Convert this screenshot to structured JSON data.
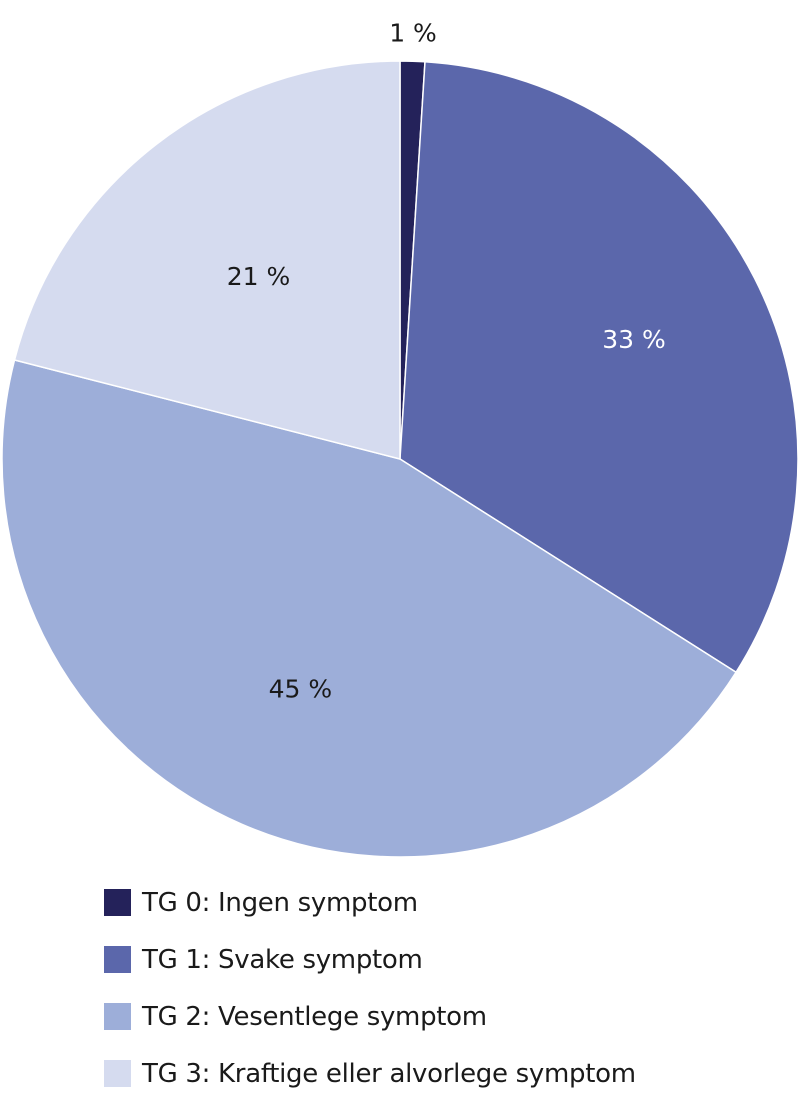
{
  "chart_data": {
    "type": "pie",
    "title": "",
    "start": "top",
    "direction": "clockwise",
    "slices": [
      {
        "name": "TG 0: Ingen symptom",
        "value": 1,
        "label": "1 %",
        "color": "#24225a",
        "label_color": "#1a1a1a"
      },
      {
        "name": "TG 1: Svake symptom",
        "value": 33,
        "label": "33 %",
        "color": "#5b67ab",
        "label_color": "#ffffff"
      },
      {
        "name": "TG 2: Vesentlege symptom",
        "value": 45,
        "label": "45 %",
        "color": "#9daed9",
        "label_color": "#1a1a1a"
      },
      {
        "name": "TG 3: Kraftige eller alvorlege symptom",
        "value": 21,
        "label": "21 %",
        "color": "#d5dbef",
        "label_color": "#1a1a1a"
      }
    ],
    "legend_position": "bottom-left"
  }
}
